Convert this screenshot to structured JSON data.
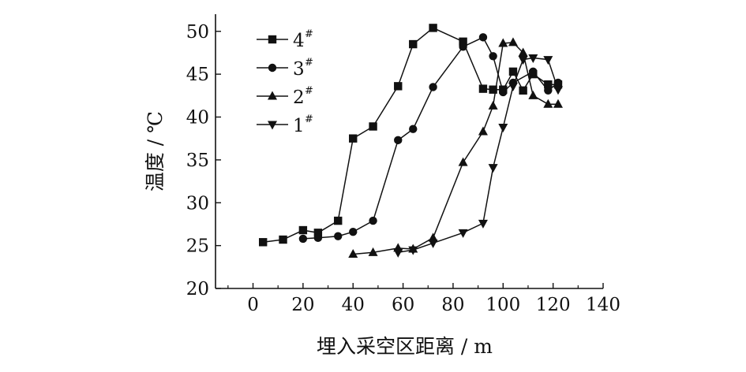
{
  "chart_data": {
    "type": "line",
    "xlabel": "埋入采空区距离 / m",
    "ylabel": "温度 / ℃",
    "xlim": [
      -15,
      140
    ],
    "ylim": [
      20,
      52
    ],
    "xticks": [
      0,
      20,
      40,
      60,
      80,
      100,
      120,
      140
    ],
    "yticks": [
      20,
      25,
      30,
      35,
      40,
      45,
      50
    ],
    "grid": false,
    "legend_position": "top-left",
    "series": [
      {
        "name": "4",
        "name_sup": "#",
        "marker": "square",
        "x": [
          4,
          12,
          20,
          26,
          34,
          40,
          48,
          58,
          64,
          72,
          84,
          92,
          96,
          100,
          104,
          108,
          112,
          118,
          122
        ],
        "y": [
          25.4,
          25.7,
          26.8,
          26.5,
          27.9,
          37.5,
          38.9,
          43.6,
          48.5,
          50.4,
          48.8,
          43.3,
          43.2,
          43.2,
          45.3,
          43.1,
          45.0,
          43.8,
          43.8
        ]
      },
      {
        "name": "3",
        "name_sup": "#",
        "marker": "circle",
        "x": [
          20,
          26,
          34,
          40,
          48,
          58,
          64,
          72,
          84,
          92,
          96,
          100,
          104,
          112,
          118,
          122
        ],
        "y": [
          25.8,
          25.9,
          26.1,
          26.6,
          27.9,
          37.3,
          38.6,
          43.5,
          48.2,
          49.3,
          47.1,
          42.9,
          44.0,
          45.3,
          43.1,
          44.0
        ]
      },
      {
        "name": "2",
        "name_sup": "#",
        "marker": "triangle-up",
        "x": [
          40,
          48,
          58,
          64,
          72,
          84,
          92,
          96,
          100,
          104,
          108,
          112,
          118,
          122
        ],
        "y": [
          24.0,
          24.2,
          24.7,
          24.6,
          25.9,
          34.7,
          38.3,
          41.3,
          48.6,
          48.7,
          47.5,
          42.5,
          41.5,
          41.5
        ]
      },
      {
        "name": "1",
        "name_sup": "#",
        "marker": "triangle-down",
        "x": [
          58,
          64,
          72,
          84,
          92,
          96,
          100,
          104,
          108,
          112,
          118,
          122
        ],
        "y": [
          24.2,
          24.5,
          25.3,
          26.5,
          27.6,
          34.1,
          38.8,
          43.6,
          46.7,
          46.9,
          46.7,
          43.2
        ]
      }
    ]
  }
}
